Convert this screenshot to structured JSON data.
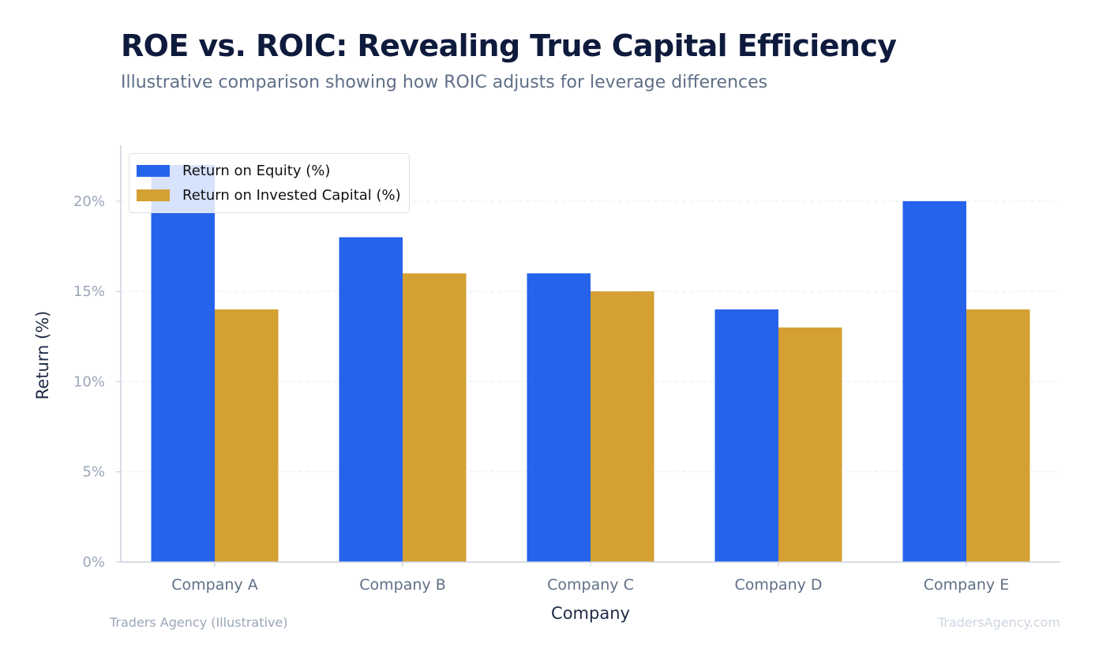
{
  "header": {
    "title": "ROE vs. ROIC: Revealing True Capital Efficiency",
    "subtitle": "Illustrative comparison showing how ROIC adjusts for leverage differences"
  },
  "footer": {
    "source": "Traders Agency (Illustrative)",
    "watermark": "TradersAgency.com"
  },
  "colors": {
    "roe": "#2563eb",
    "roic": "#d4a032",
    "axis": "#cbd2dc",
    "grid": "#e8ecf1",
    "tick_text": "#9aa6b8",
    "category_text": "#5f6f87",
    "axis_label": "#1e2a44"
  },
  "chart_data": {
    "type": "bar",
    "categories": [
      "Company A",
      "Company B",
      "Company C",
      "Company D",
      "Company E"
    ],
    "series": [
      {
        "name": "Return on Equity (%)",
        "values": [
          22,
          18,
          16,
          14,
          20
        ]
      },
      {
        "name": "Return on Invested Capital (%)",
        "values": [
          14,
          16,
          15,
          13,
          14
        ]
      }
    ],
    "xlabel": "Company",
    "ylabel": "Return (%)",
    "ylim": [
      0,
      23.1
    ],
    "yticks": [
      0,
      5,
      10,
      15,
      20
    ],
    "ytick_labels": [
      "0%",
      "5%",
      "10%",
      "15%",
      "20%"
    ],
    "grid": "horizontal dashed",
    "legend_position": "top-left"
  }
}
